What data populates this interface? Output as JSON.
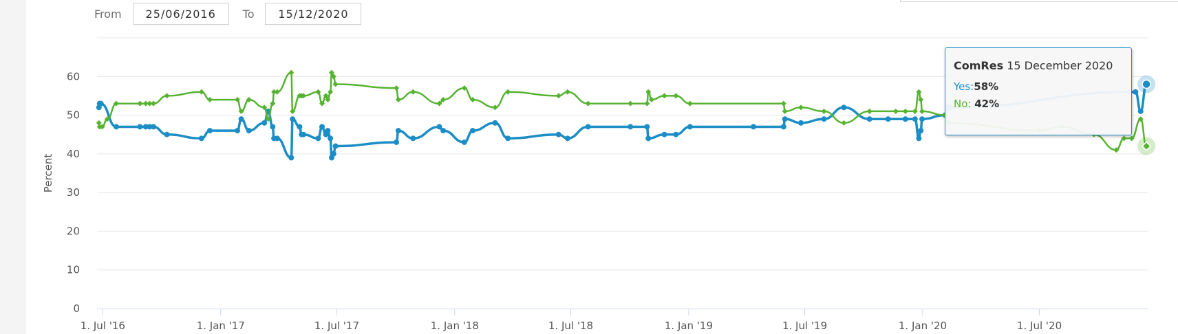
{
  "range_selector": {
    "from_label": "From",
    "from_value": "25/06/2016",
    "to_label": "To",
    "to_value": "15/12/2020"
  },
  "tooltip": {
    "pollster": "ComRes",
    "date": "15 December 2020",
    "yes_label": "Yes:",
    "yes_value": "58%",
    "no_label": "No:",
    "no_value": "42%"
  },
  "colors": {
    "yes": "#1c8dc5",
    "no": "#56b331",
    "grid": "#e6e6e6"
  },
  "chart_data": {
    "type": "line",
    "ylabel": "Percent",
    "ylim": [
      0,
      70
    ],
    "yticks": [
      0,
      10,
      20,
      30,
      40,
      50,
      60
    ],
    "xlim": [
      "2016-06-22",
      "2020-12-17"
    ],
    "xticks": [
      {
        "date": "2016-07-01",
        "label": "1. Jul '16"
      },
      {
        "date": "2017-01-01",
        "label": "1. Jan '17"
      },
      {
        "date": "2017-07-01",
        "label": "1. Jul '17"
      },
      {
        "date": "2018-01-01",
        "label": "1. Jan '18"
      },
      {
        "date": "2018-07-01",
        "label": "1. Jul '18"
      },
      {
        "date": "2019-01-01",
        "label": "1. Jan '19"
      },
      {
        "date": "2019-07-01",
        "label": "1. Jul '19"
      },
      {
        "date": "2020-01-01",
        "label": "1. Jan '20"
      },
      {
        "date": "2020-07-01",
        "label": "1. Jul '20"
      }
    ],
    "grid": true,
    "series": [
      {
        "name": "Yes",
        "color": "#1c8dc5",
        "points": [
          [
            "2016-06-25",
            52
          ],
          [
            "2016-06-26",
            53
          ],
          [
            "2016-06-28",
            53
          ],
          [
            "2016-07-22",
            47
          ],
          [
            "2016-08-28",
            47
          ],
          [
            "2016-09-06",
            47
          ],
          [
            "2016-09-12",
            47
          ],
          [
            "2016-09-18",
            47
          ],
          [
            "2016-10-09",
            45
          ],
          [
            "2016-12-02",
            44
          ],
          [
            "2016-12-15",
            46
          ],
          [
            "2017-01-27",
            46
          ],
          [
            "2017-02-02",
            49
          ],
          [
            "2017-02-14",
            46
          ],
          [
            "2017-03-10",
            48
          ],
          [
            "2017-03-16",
            51
          ],
          [
            "2017-03-23",
            47
          ],
          [
            "2017-03-25",
            44
          ],
          [
            "2017-03-30",
            44
          ],
          [
            "2017-04-21",
            39
          ],
          [
            "2017-04-23",
            49
          ],
          [
            "2017-05-04",
            47
          ],
          [
            "2017-05-07",
            45
          ],
          [
            "2017-05-10",
            45
          ],
          [
            "2017-06-02",
            44
          ],
          [
            "2017-06-08",
            47
          ],
          [
            "2017-06-14",
            45
          ],
          [
            "2017-06-17",
            46
          ],
          [
            "2017-06-21",
            44
          ],
          [
            "2017-06-23",
            39
          ],
          [
            "2017-06-26",
            40
          ],
          [
            "2017-06-29",
            42
          ],
          [
            "2017-10-02",
            43
          ],
          [
            "2017-10-05",
            46
          ],
          [
            "2017-10-28",
            44
          ],
          [
            "2017-12-08",
            47
          ],
          [
            "2017-12-14",
            46
          ],
          [
            "2018-01-16",
            43
          ],
          [
            "2018-01-29",
            46
          ],
          [
            "2018-03-05",
            48
          ],
          [
            "2018-03-25",
            44
          ],
          [
            "2018-06-12",
            45
          ],
          [
            "2018-06-26",
            44
          ],
          [
            "2018-07-28",
            47
          ],
          [
            "2018-10-02",
            47
          ],
          [
            "2018-10-28",
            47
          ],
          [
            "2018-10-30",
            44
          ],
          [
            "2018-11-24",
            45
          ],
          [
            "2018-12-12",
            45
          ],
          [
            "2019-01-03",
            47
          ],
          [
            "2019-04-12",
            47
          ],
          [
            "2019-05-29",
            47
          ],
          [
            "2019-05-31",
            49
          ],
          [
            "2019-06-25",
            48
          ],
          [
            "2019-07-31",
            49
          ],
          [
            "2019-08-31",
            52
          ],
          [
            "2019-10-10",
            49
          ],
          [
            "2019-11-08",
            49
          ],
          [
            "2019-12-05",
            49
          ],
          [
            "2019-12-20",
            49
          ],
          [
            "2019-12-26",
            44
          ],
          [
            "2019-12-29",
            46
          ],
          [
            "2019-12-31",
            49
          ],
          [
            "2020-02-05",
            50
          ],
          [
            "2020-02-09",
            52
          ],
          [
            "2020-02-12",
            52
          ],
          [
            "2020-11-28",
            56
          ],
          [
            "2020-12-06",
            51
          ],
          [
            "2020-12-15",
            58
          ]
        ]
      },
      {
        "name": "No",
        "color": "#56b331",
        "points": [
          [
            "2016-06-25",
            48
          ],
          [
            "2016-06-26",
            47
          ],
          [
            "2016-06-30",
            47
          ],
          [
            "2016-07-08",
            49
          ],
          [
            "2016-07-22",
            53
          ],
          [
            "2016-08-28",
            53
          ],
          [
            "2016-09-06",
            53
          ],
          [
            "2016-09-12",
            53
          ],
          [
            "2016-09-18",
            53
          ],
          [
            "2016-10-09",
            55
          ],
          [
            "2016-12-02",
            56
          ],
          [
            "2016-12-15",
            54
          ],
          [
            "2017-01-27",
            54
          ],
          [
            "2017-02-02",
            51
          ],
          [
            "2017-02-14",
            54
          ],
          [
            "2017-03-10",
            52
          ],
          [
            "2017-03-16",
            49
          ],
          [
            "2017-03-23",
            53
          ],
          [
            "2017-03-25",
            56
          ],
          [
            "2017-03-30",
            56
          ],
          [
            "2017-04-21",
            61
          ],
          [
            "2017-04-23",
            51
          ],
          [
            "2017-05-04",
            55
          ],
          [
            "2017-05-07",
            55
          ],
          [
            "2017-05-10",
            55
          ],
          [
            "2017-06-02",
            56
          ],
          [
            "2017-06-08",
            53
          ],
          [
            "2017-06-14",
            55
          ],
          [
            "2017-06-17",
            54
          ],
          [
            "2017-06-21",
            56
          ],
          [
            "2017-06-23",
            61
          ],
          [
            "2017-06-26",
            60
          ],
          [
            "2017-06-29",
            58
          ],
          [
            "2017-10-02",
            57
          ],
          [
            "2017-10-05",
            54
          ],
          [
            "2017-10-28",
            56
          ],
          [
            "2017-12-08",
            53
          ],
          [
            "2017-12-14",
            54
          ],
          [
            "2018-01-16",
            57
          ],
          [
            "2018-01-29",
            54
          ],
          [
            "2018-03-05",
            52
          ],
          [
            "2018-03-25",
            56
          ],
          [
            "2018-06-12",
            55
          ],
          [
            "2018-06-26",
            56
          ],
          [
            "2018-07-28",
            53
          ],
          [
            "2018-10-02",
            53
          ],
          [
            "2018-10-28",
            53
          ],
          [
            "2018-10-30",
            56
          ],
          [
            "2018-11-04",
            54
          ],
          [
            "2018-11-24",
            55
          ],
          [
            "2018-12-12",
            55
          ],
          [
            "2019-01-03",
            53
          ],
          [
            "2019-05-29",
            53
          ],
          [
            "2019-05-31",
            51
          ],
          [
            "2019-06-25",
            52
          ],
          [
            "2019-07-31",
            51
          ],
          [
            "2019-08-31",
            48
          ],
          [
            "2019-10-10",
            51
          ],
          [
            "2019-11-20",
            51
          ],
          [
            "2019-12-05",
            51
          ],
          [
            "2019-12-20",
            51
          ],
          [
            "2019-12-26",
            56
          ],
          [
            "2019-12-29",
            54
          ],
          [
            "2019-12-31",
            51
          ],
          [
            "2020-02-05",
            50
          ],
          [
            "2020-02-09",
            48
          ],
          [
            "2020-07-01",
            46
          ],
          [
            "2020-08-05",
            47
          ],
          [
            "2020-09-24",
            45
          ],
          [
            "2020-10-29",
            41
          ],
          [
            "2020-11-10",
            44
          ],
          [
            "2020-11-22",
            44
          ],
          [
            "2020-12-06",
            49
          ],
          [
            "2020-12-15",
            42
          ]
        ]
      }
    ]
  }
}
